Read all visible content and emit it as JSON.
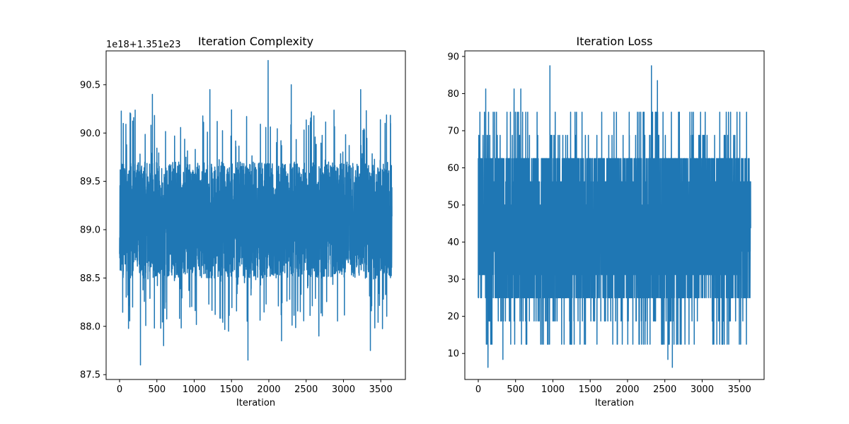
{
  "chart_data": [
    {
      "type": "line",
      "title": "Iteration Complexity",
      "xlabel": "Iteration",
      "ylabel": "",
      "offset_label": "1e18+1.351e23",
      "xlim": [
        -180,
        3830
      ],
      "ylim": [
        87.45,
        90.85
      ],
      "x_ticks": [
        0,
        500,
        1000,
        1500,
        2000,
        2500,
        3000,
        3500
      ],
      "x_tick_labels": [
        "0",
        "500",
        "1000",
        "1500",
        "2000",
        "2500",
        "3000",
        "3500"
      ],
      "y_ticks": [
        87.5,
        88.0,
        88.5,
        89.0,
        89.5,
        90.0,
        90.5
      ],
      "y_tick_labels": [
        "87.5",
        "88.0",
        "88.5",
        "89.0",
        "89.5",
        "90.0",
        "90.5"
      ],
      "color": "#1f77b4",
      "series": [
        {
          "name": "complexity",
          "x_start": 0,
          "x_end": 3650,
          "num_points": 3650,
          "band_low": 88.5,
          "band_high": 89.7,
          "peaks": [
            [
              50,
              90.1
            ],
            [
              280,
              87.6
            ],
            [
              440,
              90.4
            ],
            [
              590,
              87.8
            ],
            [
              1210,
              90.45
            ],
            [
              1460,
              87.95
            ],
            [
              1720,
              87.65
            ],
            [
              1990,
              90.75
            ],
            [
              2170,
              87.85
            ],
            [
              2300,
              90.5
            ],
            [
              2670,
              87.9
            ],
            [
              3230,
              90.45
            ],
            [
              3360,
              87.75
            ],
            [
              3630,
              90.1
            ]
          ]
        }
      ]
    },
    {
      "type": "line",
      "title": "Iteration Loss",
      "xlabel": "Iteration",
      "ylabel": "",
      "xlim": [
        -180,
        3830
      ],
      "ylim": [
        3,
        91.5
      ],
      "x_ticks": [
        0,
        500,
        1000,
        1500,
        2000,
        2500,
        3000,
        3500
      ],
      "x_tick_labels": [
        "0",
        "500",
        "1000",
        "1500",
        "2000",
        "2500",
        "3000",
        "3500"
      ],
      "y_ticks": [
        10,
        20,
        30,
        40,
        50,
        60,
        70,
        80,
        90
      ],
      "y_tick_labels": [
        "10",
        "20",
        "30",
        "40",
        "50",
        "60",
        "70",
        "80",
        "90"
      ],
      "color": "#1f77b4",
      "series": [
        {
          "name": "loss",
          "x_start": 0,
          "x_end": 3650,
          "num_points": 3650,
          "levels": [
            6.25,
            12.5,
            18.75,
            25,
            31.25,
            37.5,
            43.75,
            50,
            56.25,
            62.5,
            68.75,
            75,
            81.25,
            87.5
          ],
          "band_low": 25,
          "band_high": 62.5,
          "peaks": [
            [
              130,
              6.25
            ],
            [
              330,
              8.4
            ],
            [
              960,
              87.5
            ],
            [
              2320,
              87.5
            ],
            [
              2400,
              83.5
            ],
            [
              2540,
              8.4
            ],
            [
              2600,
              6.25
            ],
            [
              100,
              81.25
            ],
            [
              480,
              81.25
            ],
            [
              570,
              81.25
            ]
          ]
        }
      ]
    }
  ]
}
